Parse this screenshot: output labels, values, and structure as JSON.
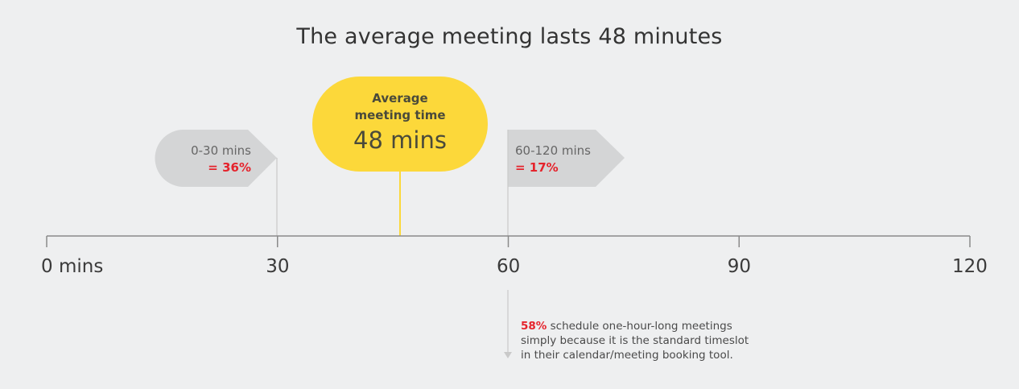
{
  "title": "The average meeting lasts 48 minutes",
  "colors": {
    "background": "#eeeff0",
    "highlight": "#fcd83a",
    "accent_red": "#e5232c",
    "flag_grey": "#d4d5d6",
    "axis": "#8a8a8a"
  },
  "flag_left": {
    "range": "0-30 mins",
    "share": "= 36%"
  },
  "flag_right": {
    "range": "60-120 mins",
    "share": "= 17%"
  },
  "average": {
    "label_line1": "Average",
    "label_line2": "meeting time",
    "value_text": "48 mins",
    "value": 48
  },
  "axis": {
    "ticks": [
      {
        "value": 0,
        "label": "0 mins"
      },
      {
        "value": 30,
        "label": "30"
      },
      {
        "value": 60,
        "label": "60"
      },
      {
        "value": 90,
        "label": "90"
      },
      {
        "value": 120,
        "label": "120"
      }
    ]
  },
  "note": {
    "pct": "58%",
    "line1": " schedule one-hour-long meetings",
    "line2": "simply because it is the standard timeslot",
    "line3": "in their calendar/meeting booking tool."
  }
}
